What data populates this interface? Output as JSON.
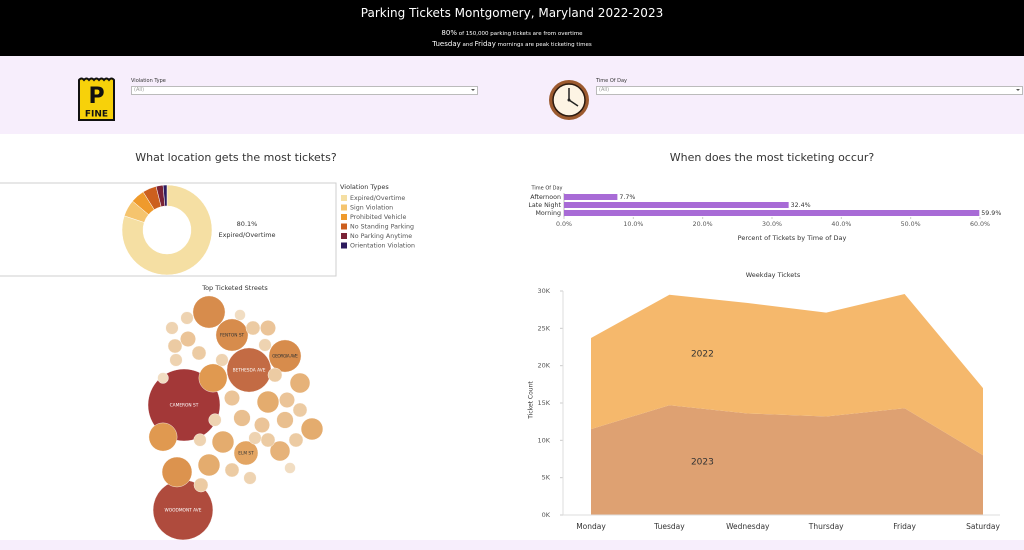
{
  "header": {
    "title": "Parking Tickets Montgomery, Maryland 2022-2023",
    "subtitle": [
      [
        "80%",
        " of 150,000 parking tickets are from overtime"
      ],
      [
        "Tuesday",
        " and ",
        "Friday",
        " mornings are peak ticketing times"
      ]
    ]
  },
  "icons": {
    "parking": "P",
    "fine": "FINE"
  },
  "filters": [
    {
      "label": "Violation Type",
      "value": "(All)"
    },
    {
      "label": "Time Of Day",
      "value": "(All)"
    }
  ],
  "section_titles": [
    "What location gets the most tickets?",
    "When does the most ticketing occur?"
  ],
  "chart_data": [
    {
      "type": "donut",
      "legend_title": "Violation Types",
      "categories": [
        "Expired/Overtime",
        "Sign Violation",
        "Prohibited Vehicle",
        "No Standing Parking",
        "No Parking Anytime",
        "Orientation Violation"
      ],
      "values": [
        80.1,
        6,
        5,
        5,
        2.5,
        1.4
      ],
      "value_labels": [
        "80.1%",
        null,
        null,
        null,
        null,
        null
      ],
      "colors": [
        "#f5dfa3",
        "#f5c46e",
        "#ef9a2c",
        "#cc5f1e",
        "#7a2336",
        "#2d1b5e"
      ]
    },
    {
      "type": "packed_bubble",
      "title": "Top Ticketed Streets",
      "categories": [
        "CAMERON ST",
        "WOODMONT AVE",
        "BETHESDA AVE",
        "GEORGIA AVE",
        "FENTON ST",
        "ELM ST",
        null,
        null,
        null,
        null,
        null,
        null,
        null,
        null,
        null,
        null,
        null,
        null,
        null,
        null,
        null,
        null,
        null,
        null,
        null,
        null,
        null,
        null,
        null,
        null,
        null,
        null,
        null,
        null,
        null,
        null,
        null,
        null,
        null,
        null,
        null,
        null,
        null,
        null
      ],
      "values": [
        13000,
        9000,
        4900,
        2600,
        2600,
        1450,
        2600,
        2000,
        2000,
        2250,
        1200,
        1200,
        1200,
        1000,
        1200,
        1000,
        600,
        500,
        400,
        300,
        400,
        400,
        300,
        500,
        600,
        400,
        500,
        600,
        500,
        700,
        600,
        700,
        600,
        400,
        500,
        500,
        400,
        400,
        500,
        400,
        500,
        500,
        300,
        400
      ],
      "color_scale": [
        "#f1ddc2",
        "#e09a50",
        "#a33838"
      ]
    },
    {
      "type": "hbar",
      "y_header": "Time Of Day",
      "x_label": "Percent of Tickets by Time of Day",
      "categories": [
        "Afternoon",
        "Late Night",
        "Morning"
      ],
      "values": [
        7.7,
        32.4,
        59.9
      ],
      "value_labels": [
        "7.7%",
        "32.4%",
        "59.9%"
      ],
      "color": "#a86bd6",
      "xlim": [
        0,
        60
      ],
      "xticks": [
        {
          "value": 0,
          "label": "0.0%"
        },
        {
          "value": 10,
          "label": "10.0%"
        },
        {
          "value": 20,
          "label": "20.0%"
        },
        {
          "value": 30,
          "label": "30.0%"
        },
        {
          "value": 40,
          "label": "40.0%"
        },
        {
          "value": 50,
          "label": "50.0%"
        },
        {
          "value": 60,
          "label": "60.0%"
        }
      ]
    },
    {
      "type": "stacked_area",
      "title": "Weekday Tickets",
      "y_label": "Ticket Count",
      "categories": [
        "Monday",
        "Tuesday",
        "Wednesday",
        "Thursday",
        "Friday",
        "Saturday"
      ],
      "series": [
        {
          "name": "2023",
          "color": "#dea172",
          "values": [
            11500,
            14700,
            13600,
            13200,
            14300,
            8000
          ]
        },
        {
          "name": "2022",
          "color": "#f5b86c",
          "values": [
            12200,
            14800,
            14800,
            13900,
            15300,
            9000
          ]
        }
      ],
      "ylim": [
        0,
        30000
      ],
      "yticks": [
        {
          "value": 0,
          "label": "0K"
        },
        {
          "value": 5000,
          "label": "5K"
        },
        {
          "value": 10000,
          "label": "10K"
        },
        {
          "value": 15000,
          "label": "15K"
        },
        {
          "value": 20000,
          "label": "20K"
        },
        {
          "value": 25000,
          "label": "25K"
        },
        {
          "value": 30000,
          "label": "30K"
        }
      ]
    }
  ]
}
